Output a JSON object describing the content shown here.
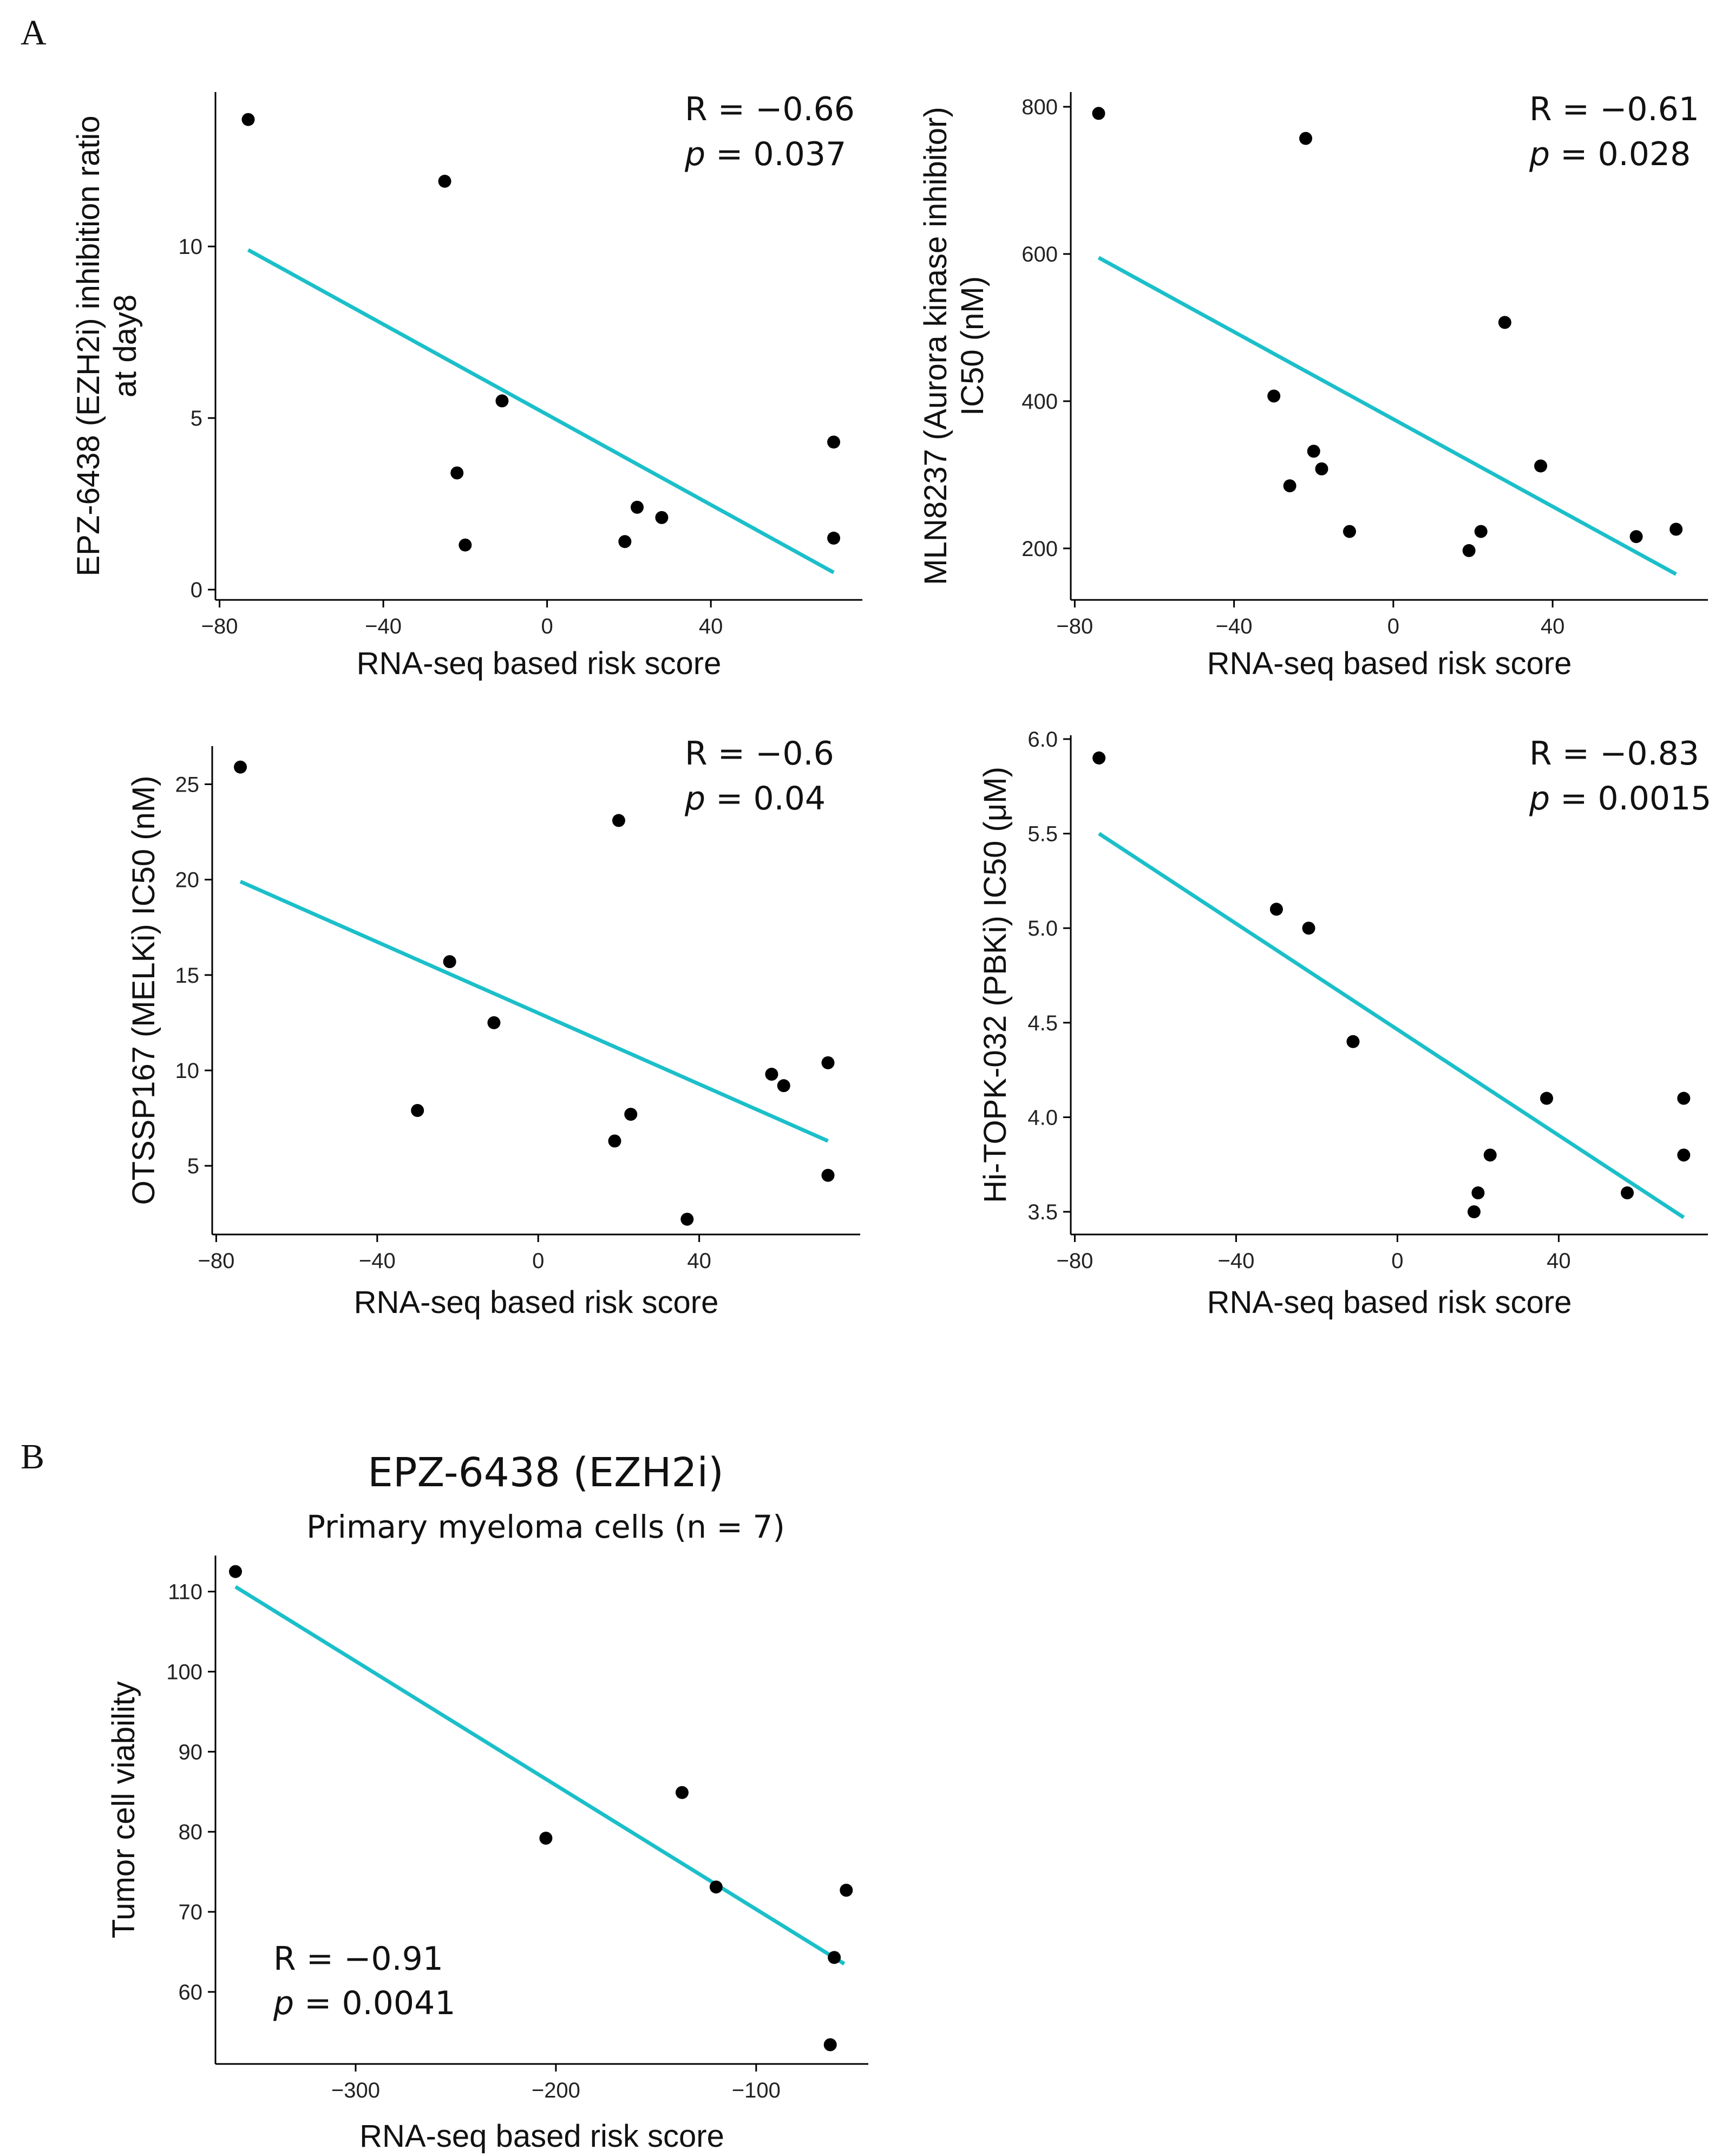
{
  "panel_labels": {
    "a": "A",
    "b": "B"
  },
  "colors": {
    "fit_line": "#1BBFC9",
    "points": "#000000",
    "axis": "#000000"
  },
  "chart_data": [
    {
      "id": "a1",
      "type": "scatter",
      "title": "",
      "xlabel": "RNA-seq based risk score",
      "ylabel": [
        "EPZ-6438 (EZH2i) inhibition ratio",
        "at day8"
      ],
      "xlim": [
        -81,
        77
      ],
      "ylim": [
        -0.3,
        14.5
      ],
      "xticks": [
        -80,
        -40,
        0,
        40
      ],
      "yticks": [
        0,
        5,
        10
      ],
      "points": [
        [
          -73,
          13.7
        ],
        [
          -25,
          11.9
        ],
        [
          -11,
          5.5
        ],
        [
          -22,
          3.4
        ],
        [
          -20,
          1.3
        ],
        [
          19,
          1.4
        ],
        [
          22,
          2.4
        ],
        [
          28,
          2.1
        ],
        [
          70,
          4.3
        ],
        [
          70,
          1.5
        ]
      ],
      "fit": [
        [
          -73,
          9.9
        ],
        [
          70,
          0.5
        ]
      ],
      "stats": {
        "r": "R = −0.66",
        "p_label": "p",
        "p_value": " = 0.037"
      }
    },
    {
      "id": "a2",
      "type": "scatter",
      "title": "",
      "xlabel": "RNA-seq based risk score",
      "ylabel": [
        "MLN8237 (Aurora kinase inhibitor)",
        "IC50 (nM)"
      ],
      "xlim": [
        -81,
        79
      ],
      "ylim": [
        130,
        820
      ],
      "xticks": [
        -80,
        -40,
        0,
        40
      ],
      "yticks": [
        200,
        400,
        600,
        800
      ],
      "points": [
        [
          -74,
          791
        ],
        [
          -22,
          757
        ],
        [
          28,
          507
        ],
        [
          -30,
          407
        ],
        [
          -20,
          332
        ],
        [
          -18,
          308
        ],
        [
          -26,
          285
        ],
        [
          -11,
          223
        ],
        [
          37,
          312
        ],
        [
          19,
          197
        ],
        [
          22,
          223
        ],
        [
          61,
          216
        ],
        [
          71,
          226
        ]
      ],
      "fit": [
        [
          -74,
          595
        ],
        [
          71,
          165
        ]
      ],
      "stats": {
        "r": "R = −0.61",
        "p_label": "p",
        "p_value": " = 0.028"
      }
    },
    {
      "id": "a3",
      "type": "scatter",
      "title": "",
      "xlabel": "RNA-seq based risk score",
      "ylabel": [
        "OTSSP167 (MELKi) IC50 (nM)"
      ],
      "xlim": [
        -81,
        80
      ],
      "ylim": [
        1.4,
        27
      ],
      "xticks": [
        -80,
        -40,
        0,
        40
      ],
      "yticks": [
        5,
        10,
        15,
        20,
        25
      ],
      "points": [
        [
          -74,
          25.9
        ],
        [
          20,
          23.1
        ],
        [
          -22,
          15.7
        ],
        [
          -11,
          12.5
        ],
        [
          -30,
          7.9
        ],
        [
          19,
          6.3
        ],
        [
          23,
          7.7
        ],
        [
          58,
          9.8
        ],
        [
          61,
          9.2
        ],
        [
          72,
          10.4
        ],
        [
          72,
          4.5
        ],
        [
          37,
          2.2
        ]
      ],
      "fit": [
        [
          -74,
          19.9
        ],
        [
          72,
          6.3
        ]
      ],
      "stats": {
        "r": "R = −0.6",
        "p_label": "p",
        "p_value": " = 0.04"
      }
    },
    {
      "id": "a4",
      "type": "scatter",
      "title": "",
      "xlabel": "RNA-seq based risk score",
      "ylabel": [
        "Hi-TOPK-032 (PBKi) IC50 (μM)"
      ],
      "xlim": [
        -81,
        77
      ],
      "ylim": [
        3.38,
        6.02
      ],
      "xticks": [
        -80,
        -40,
        0,
        40
      ],
      "yticks": [
        3.5,
        4.0,
        4.5,
        5.0,
        5.5,
        6.0
      ],
      "ytick_decimals": 1,
      "points": [
        [
          -74,
          5.9
        ],
        [
          -30,
          5.1
        ],
        [
          -22,
          5.0
        ],
        [
          -11,
          4.4
        ],
        [
          37,
          4.1
        ],
        [
          23,
          3.8
        ],
        [
          20,
          3.6
        ],
        [
          19,
          3.5
        ],
        [
          57,
          3.6
        ],
        [
          71,
          4.1
        ],
        [
          71,
          3.8
        ]
      ],
      "fit": [
        [
          -74,
          5.5
        ],
        [
          71,
          3.47
        ]
      ],
      "stats": {
        "r": "R = −0.83",
        "p_label": "p",
        "p_value": " = 0.0015"
      }
    },
    {
      "id": "b",
      "type": "scatter",
      "title": "EPZ-6438 (EZH2i)",
      "subtitle": "Primary myeloma cells (n = 7)",
      "xlabel": "RNA-seq based risk score",
      "ylabel": [
        "Tumor cell viability"
      ],
      "xlim": [
        -370,
        -44
      ],
      "ylim": [
        51,
        114.5
      ],
      "xticks": [
        -300,
        -200,
        -100
      ],
      "yticks": [
        60,
        70,
        80,
        90,
        100,
        110
      ],
      "points": [
        [
          -360,
          112.5
        ],
        [
          -205,
          79.2
        ],
        [
          -137,
          84.9
        ],
        [
          -120,
          73.1
        ],
        [
          -55,
          72.7
        ],
        [
          -61,
          64.3
        ],
        [
          -63,
          53.4
        ]
      ],
      "fit": [
        [
          -360,
          110.6
        ],
        [
          -56,
          63.5
        ]
      ],
      "stats": {
        "r": "R = −0.91",
        "p_label": "p",
        "p_value": " = 0.0041"
      }
    }
  ]
}
